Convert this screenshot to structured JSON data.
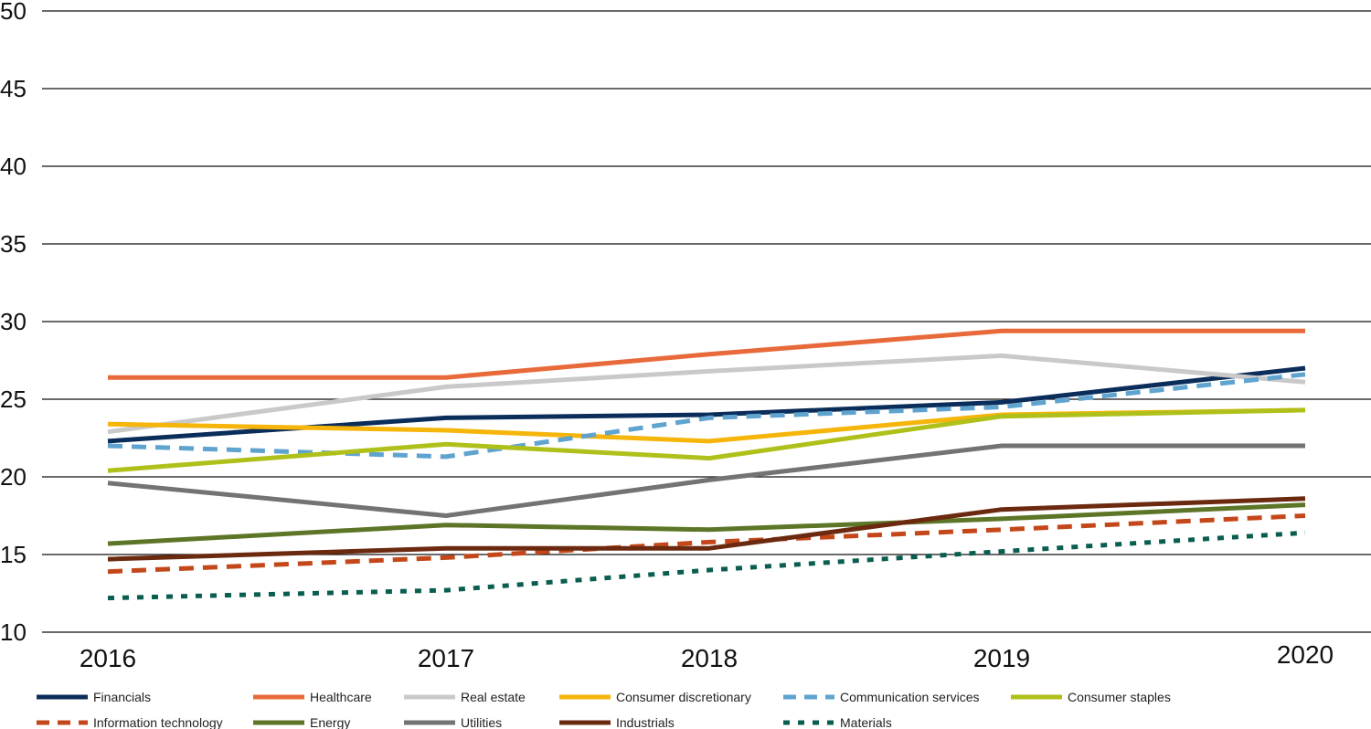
{
  "chart_data": {
    "type": "line",
    "title": "",
    "xlabel": "",
    "ylabel": "",
    "ylim": [
      10,
      50
    ],
    "yticks": [
      10,
      15,
      20,
      25,
      30,
      35,
      40,
      45,
      50
    ],
    "categories": [
      "2016",
      "2017",
      "2018",
      "2019",
      "2020"
    ],
    "grid": true,
    "legend_position": "bottom",
    "series": [
      {
        "name": "Financials",
        "color": "#0b2d5a",
        "dash": "solid",
        "values": [
          22.3,
          23.8,
          24.0,
          24.8,
          27.0
        ]
      },
      {
        "name": "Healthcare",
        "color": "#e8693a",
        "dash": "solid",
        "values": [
          26.4,
          26.4,
          27.9,
          29.4,
          29.4
        ]
      },
      {
        "name": "Real estate",
        "color": "#c9c9c9",
        "dash": "solid",
        "values": [
          22.9,
          25.8,
          26.8,
          27.8,
          26.1
        ]
      },
      {
        "name": "Consumer discretionary",
        "color": "#f5b50a",
        "dash": "solid",
        "values": [
          23.4,
          23.0,
          22.3,
          24.0,
          24.3
        ]
      },
      {
        "name": "Communication services",
        "color": "#5fa3cf",
        "dash": "dashed",
        "values": [
          22.0,
          21.3,
          23.8,
          24.5,
          26.6
        ]
      },
      {
        "name": "Consumer staples",
        "color": "#b0c01a",
        "dash": "solid",
        "values": [
          20.4,
          22.1,
          21.2,
          23.9,
          24.3
        ]
      },
      {
        "name": "Information technology",
        "color": "#c4471a",
        "dash": "dashed",
        "values": [
          13.9,
          14.8,
          15.8,
          16.6,
          17.5
        ]
      },
      {
        "name": "Energy",
        "color": "#5c7526",
        "dash": "solid",
        "values": [
          15.7,
          16.9,
          16.6,
          17.3,
          18.2
        ]
      },
      {
        "name": "Utilities",
        "color": "#737373",
        "dash": "solid",
        "values": [
          19.6,
          17.5,
          19.8,
          22.0,
          22.0
        ]
      },
      {
        "name": "Industrials",
        "color": "#6b2a10",
        "dash": "solid",
        "values": [
          14.7,
          15.4,
          15.4,
          17.9,
          18.6
        ]
      },
      {
        "name": "Materials",
        "color": "#0a5e4f",
        "dash": "dotted",
        "values": [
          12.2,
          12.7,
          14.0,
          15.2,
          16.4
        ]
      }
    ]
  }
}
